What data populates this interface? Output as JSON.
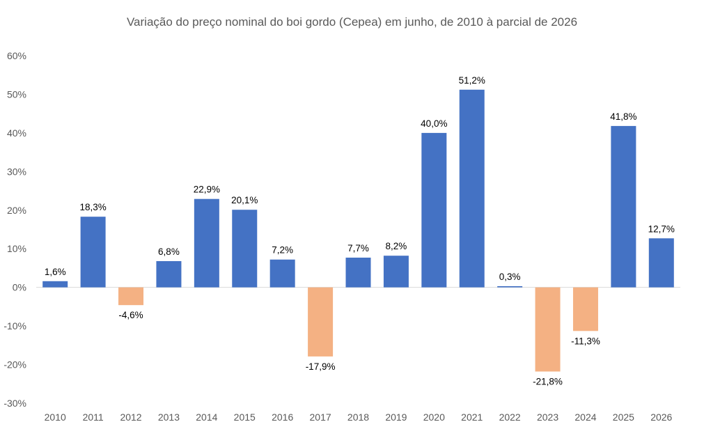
{
  "chart_data": {
    "type": "bar",
    "title": "Variação do preço nominal do boi gordo (Cepea) em junho, de 2010 à parcial de 2026",
    "xlabel": "",
    "ylabel": "",
    "categories": [
      "2010",
      "2011",
      "2012",
      "2013",
      "2014",
      "2015",
      "2016",
      "2017",
      "2018",
      "2019",
      "2020",
      "2021",
      "2022",
      "2023",
      "2024",
      "2025",
      "2026"
    ],
    "values": [
      1.6,
      18.3,
      -4.6,
      6.8,
      22.9,
      20.1,
      7.2,
      -17.9,
      7.7,
      8.2,
      40.0,
      51.2,
      0.3,
      -21.8,
      -11.3,
      41.8,
      12.7
    ],
    "data_labels": [
      "1,6%",
      "18,3%",
      "-4,6%",
      "6,8%",
      "22,9%",
      "20,1%",
      "7,2%",
      "-17,9%",
      "7,7%",
      "8,2%",
      "40,0%",
      "51,2%",
      "0,3%",
      "-21,8%",
      "-11,3%",
      "41,8%",
      "12,7%"
    ],
    "ylim": [
      -30,
      60
    ],
    "y_ticks": [
      60,
      50,
      40,
      30,
      20,
      10,
      0,
      -10,
      -20,
      -30
    ],
    "y_tick_labels": [
      "60%",
      "50%",
      "40%",
      "30%",
      "20%",
      "10%",
      "0%",
      "-10%",
      "-20%",
      "-30%"
    ],
    "grid": false,
    "colors": {
      "positive": "#4472C4",
      "negative": "#F4B183",
      "axis": "#D9D9D9"
    }
  }
}
